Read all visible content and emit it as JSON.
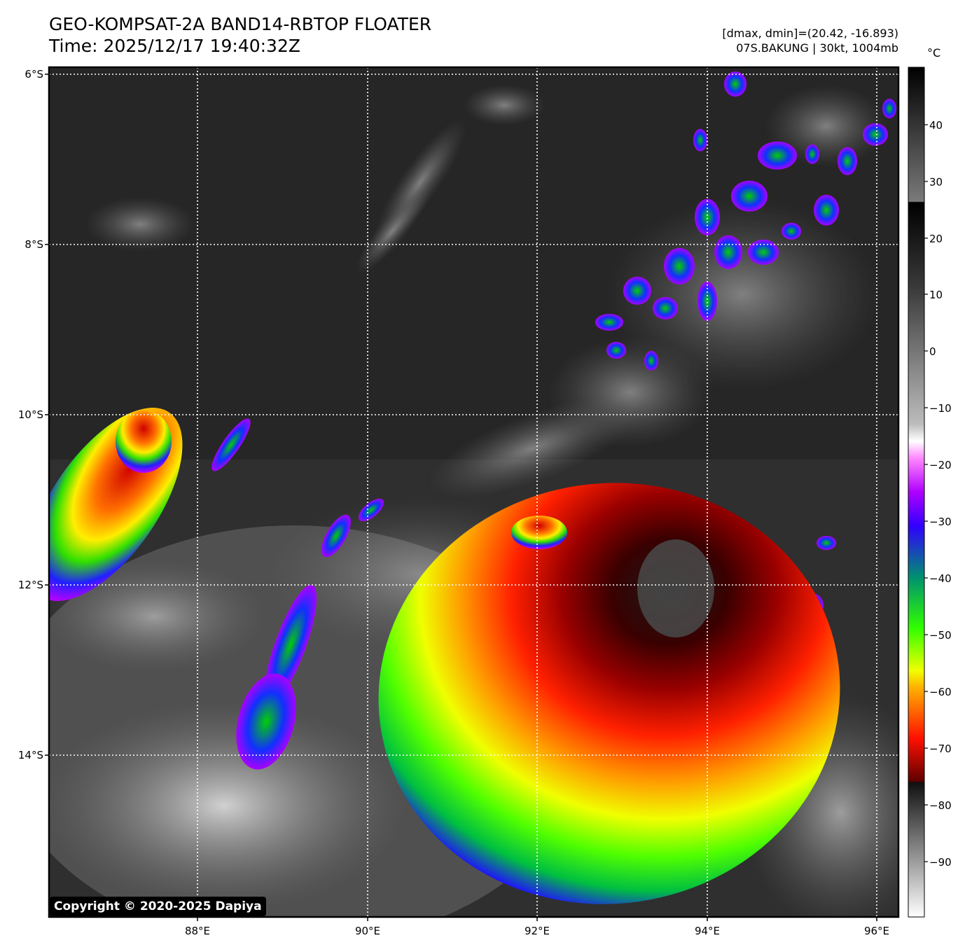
{
  "header": {
    "title": "GEO-KOMPSAT-2A BAND14-RBTOP FLOATER",
    "time": "Time: 2025/12/17 19:40:32Z",
    "range": "[dmax, dmin]=(20.42, -16.893)",
    "storm": "07S.BAKUNG | 30kt, 1004mb"
  },
  "map": {
    "lat_labels": [
      "6°S",
      "8°S",
      "10°S",
      "12°S",
      "14°S"
    ],
    "lon_labels": [
      "88°E",
      "90°E",
      "92°E",
      "94°E",
      "96°E"
    ],
    "grid_style": "dotted white"
  },
  "colorbar": {
    "unit": "°C",
    "ticks": [
      "40",
      "30",
      "20",
      "10",
      "0",
      "−10",
      "−20",
      "−30",
      "−40",
      "−50",
      "−60",
      "−70",
      "−80",
      "−90"
    ],
    "stops": [
      "#000000",
      "#6e6e6e",
      "#000000",
      "#ffffff",
      "#ff00ff",
      "#0000ff",
      "#00ff00",
      "#ffff00",
      "#ff0000",
      "#000000",
      "#ffffff"
    ]
  },
  "copyright": "Copyright © 2020-2025 Dapiya"
}
